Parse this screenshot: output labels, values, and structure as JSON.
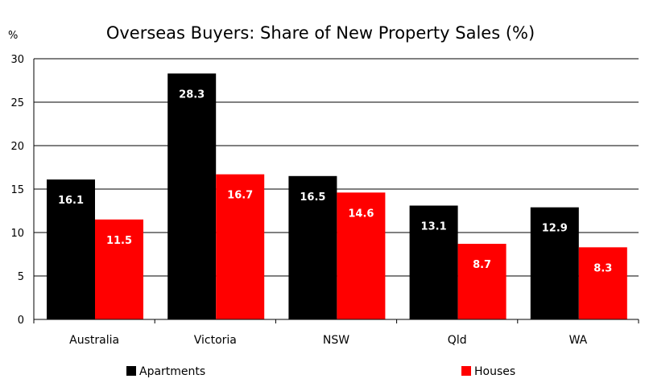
{
  "chart_data": {
    "type": "bar",
    "title": "Overseas Buyers: Share of New Property Sales (%)",
    "ylabel": "%",
    "xlabel": "",
    "ylim": [
      0,
      30
    ],
    "yticks": [
      0,
      5,
      10,
      15,
      20,
      25,
      30
    ],
    "grid": true,
    "legend": "bottom",
    "categories": [
      "Australia",
      "Victoria",
      "NSW",
      "Qld",
      "WA"
    ],
    "series": [
      {
        "name": "Apartments",
        "color": "#000000",
        "values": [
          16.1,
          28.3,
          16.5,
          13.1,
          12.9
        ]
      },
      {
        "name": "Houses",
        "color": "#ff0000",
        "values": [
          11.5,
          16.7,
          14.6,
          8.7,
          8.3
        ]
      }
    ]
  }
}
